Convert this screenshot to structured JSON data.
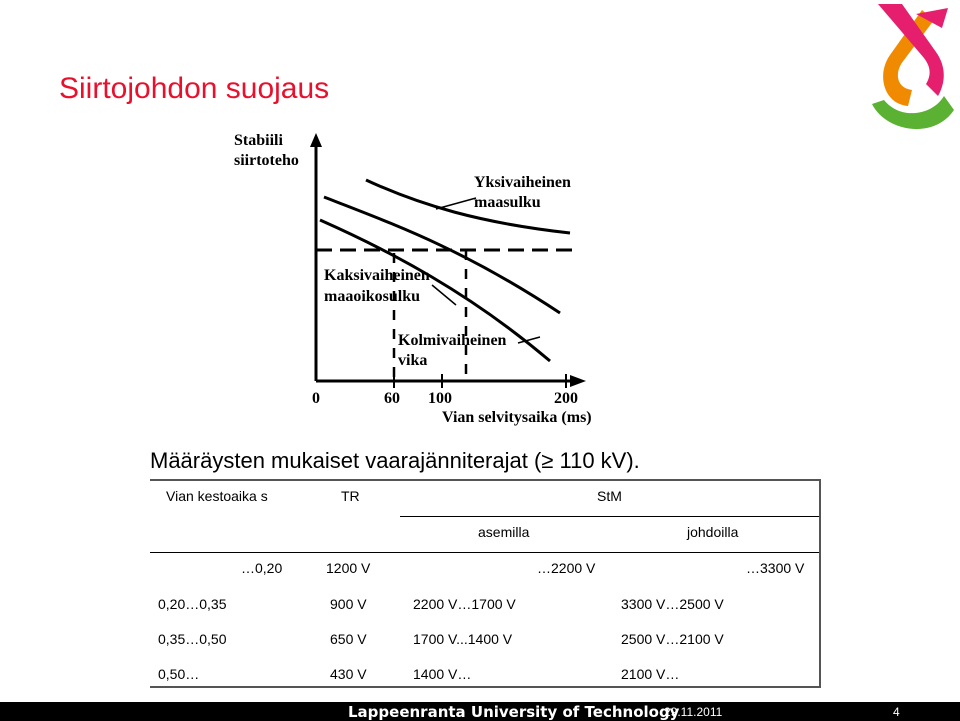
{
  "slide": {
    "title": "Siirtojohdon suojaus",
    "subtitle": "Määräysten mukaiset vaarajänniterajat (≥ 110 kV).",
    "footer": {
      "university": "Lappeenranta University of Technology",
      "date": "29.11.2011",
      "page_number": "4"
    }
  },
  "diagram": {
    "y_axis_label_line1": "Stabiili",
    "y_axis_label_line2": "siirtoteho",
    "curve1_label_line1": "Yksivaiheinen",
    "curve1_label_line2": "maasulku",
    "curve2_label_line1": "Kaksivaiheinen",
    "curve2_label_line2": "maaoikosulku",
    "curve3_label_line1": "Kolmivaiheinen",
    "curve3_label_line2": "vika",
    "x_tick_0": "0",
    "x_tick_60": "60",
    "x_tick_100": "100",
    "x_tick_200": "200",
    "x_axis_label": "Vian selvitysaika (ms)"
  },
  "table": {
    "header": {
      "col1": "Vian kestoaika s",
      "col2": "TR",
      "col3": "StM",
      "sub1": "asemilla",
      "sub2": "johdoilla"
    },
    "row1": {
      "duration": "…0,20",
      "tr": "1200 V",
      "asemilla": "…2200 V",
      "johdoilla": "…3300 V"
    },
    "row2": {
      "duration": "0,20…0,35",
      "tr": "900 V",
      "asemilla": "2200 V…1700 V",
      "johdoilla": "3300 V…2500 V"
    },
    "row3": {
      "duration": "0,35…0,50",
      "tr": "650 V",
      "asemilla": "1700 V...1400 V",
      "johdoilla": "2500 V…2100 V"
    },
    "row4": {
      "duration": "0,50…",
      "tr": "430 V",
      "asemilla": "1400 V…",
      "johdoilla": "2100 V…"
    }
  },
  "colors": {
    "title": "#e8112d",
    "logo_orange": "#f08a00",
    "logo_pink": "#e61e6e",
    "logo_green": "#5ab132"
  }
}
